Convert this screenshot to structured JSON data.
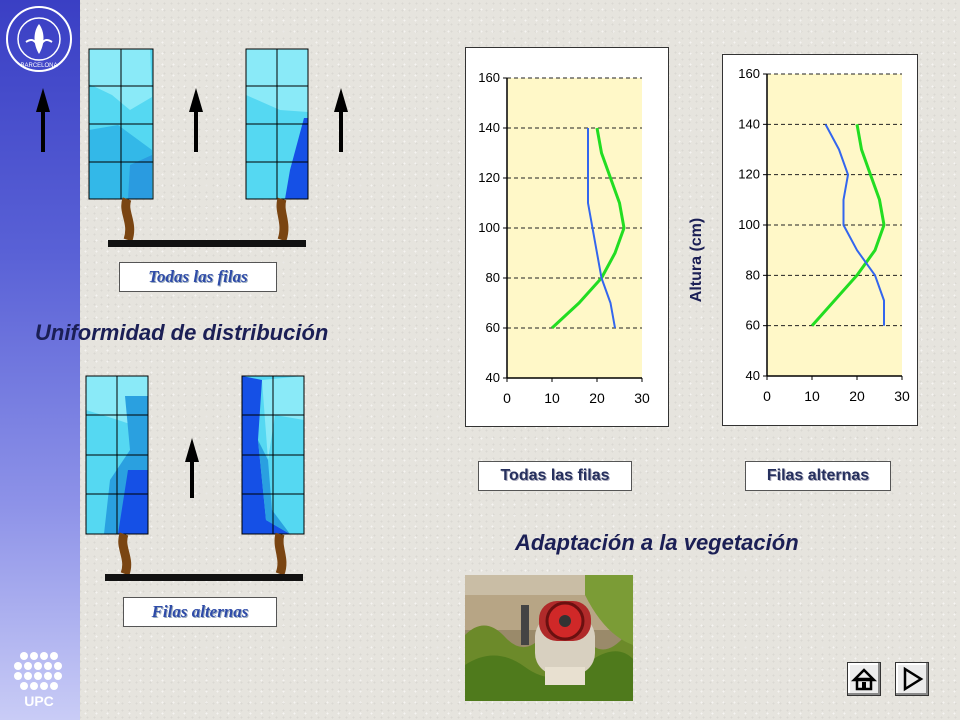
{
  "slide": {
    "heading_uniformity": "Uniformidad de distribución",
    "heading_adaptation": "Adaptación a la vegetación",
    "label_top_left": "Todas las filas",
    "label_bottom_left": "Filas alternas",
    "label_chart_left": "Todas las filas",
    "label_chart_right": "Filas alternas",
    "y_axis_label": "Altura (cm)"
  },
  "institution": {
    "seal_text": "ESCOLA·SUPERIOR·D'AGRICULTURA·BARCELONA",
    "upc_logo_text": "UPC"
  },
  "nav": {
    "home_icon": "home-icon",
    "next_icon": "next-triangle-icon"
  },
  "colors": {
    "green_series": "#22dd22",
    "blue_series": "#3366ee",
    "plot_bg": "#fff8c8",
    "sidebar_top": "#3a3fc4"
  },
  "chart_data": [
    {
      "type": "line",
      "title": "",
      "xlabel": "",
      "ylabel": "",
      "xlim": [
        0,
        30
      ],
      "ylim": [
        40,
        160
      ],
      "x_ticks": [
        0,
        10,
        20,
        30
      ],
      "y_ticks": [
        40,
        60,
        80,
        100,
        120,
        140,
        160
      ],
      "grid": "horizontal-dashed",
      "series": [
        {
          "color": "green",
          "points": [
            [
              10,
              60
            ],
            [
              16,
              70
            ],
            [
              21,
              80
            ],
            [
              24,
              90
            ],
            [
              26,
              100
            ],
            [
              25,
              110
            ],
            [
              23,
              120
            ],
            [
              21,
              130
            ],
            [
              20,
              140
            ]
          ]
        },
        {
          "color": "blue",
          "points": [
            [
              24,
              60
            ],
            [
              23,
              70
            ],
            [
              21,
              80
            ],
            [
              20,
              90
            ],
            [
              19,
              100
            ],
            [
              18,
              110
            ],
            [
              18,
              120
            ],
            [
              18,
              130
            ],
            [
              18,
              140
            ]
          ]
        }
      ]
    },
    {
      "type": "line",
      "title": "",
      "xlabel": "",
      "ylabel": "Altura (cm)",
      "xlim": [
        0,
        30
      ],
      "ylim": [
        40,
        160
      ],
      "x_ticks": [
        0,
        10,
        20,
        30
      ],
      "y_ticks": [
        40,
        60,
        80,
        100,
        120,
        140,
        160
      ],
      "grid": "horizontal-dashed",
      "series": [
        {
          "color": "green",
          "points": [
            [
              10,
              60
            ],
            [
              15,
              70
            ],
            [
              20,
              80
            ],
            [
              24,
              90
            ],
            [
              26,
              100
            ],
            [
              25,
              110
            ],
            [
              23,
              120
            ],
            [
              21,
              130
            ],
            [
              20,
              140
            ]
          ]
        },
        {
          "color": "blue",
          "points": [
            [
              26,
              60
            ],
            [
              26,
              70
            ],
            [
              24,
              80
            ],
            [
              20,
              90
            ],
            [
              17,
              100
            ],
            [
              17,
              110
            ],
            [
              18,
              120
            ],
            [
              16,
              130
            ],
            [
              13,
              140
            ]
          ]
        }
      ]
    }
  ]
}
